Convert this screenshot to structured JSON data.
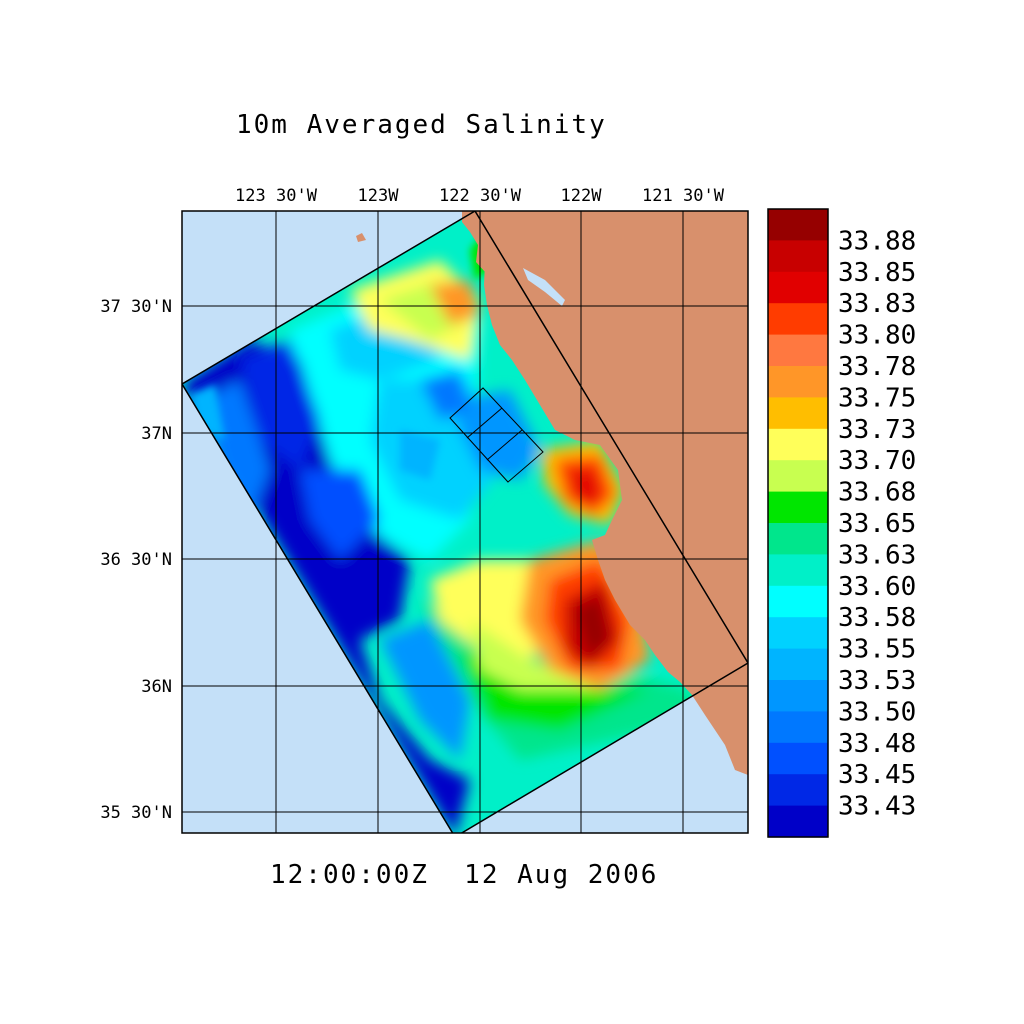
{
  "title": "10m Averaged Salinity",
  "timestamp": "12:00:00Z  12 Aug 2006",
  "lon_ticks": [
    "123 30'W",
    "123W",
    "122 30'W",
    "122W",
    "121 30'W"
  ],
  "lat_ticks": [
    "37 30'N",
    "37N",
    "36 30'N",
    "36N",
    "35 30'N"
  ],
  "colorbar": {
    "labels": [
      "33.88",
      "33.85",
      "33.83",
      "33.80",
      "33.78",
      "33.75",
      "33.73",
      "33.70",
      "33.68",
      "33.65",
      "33.63",
      "33.60",
      "33.58",
      "33.55",
      "33.53",
      "33.50",
      "33.48",
      "33.45",
      "33.43"
    ],
    "colors": [
      "#960000",
      "#c80000",
      "#e10000",
      "#ff3c00",
      "#ff7840",
      "#ff9628",
      "#ffbe00",
      "#ffff5a",
      "#c8ff50",
      "#00e600",
      "#00e68c",
      "#00f0c8",
      "#00ffff",
      "#00d2ff",
      "#00b4ff",
      "#0096ff",
      "#0078ff",
      "#0050ff",
      "#0028e6",
      "#0000c8"
    ]
  },
  "colors": {
    "land": "#d8906c",
    "ocean_outside": "#c4e0f8"
  }
}
